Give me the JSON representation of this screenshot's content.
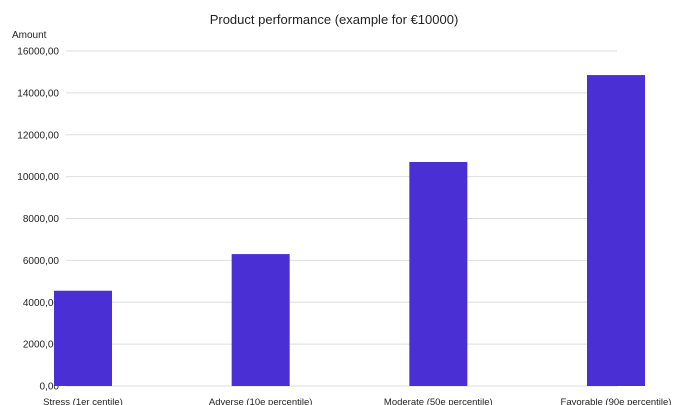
{
  "chart_data": {
    "type": "bar",
    "title": "Product performance (example for €10000)",
    "xlabel": "",
    "ylabel": "Amount",
    "categories": [
      "Stress (1er centile)",
      "Adverse (10e percentile)",
      "Moderate (50e percentile)",
      "Favorable (90e percentile)"
    ],
    "values": [
      4550,
      6300,
      10700,
      14850
    ],
    "ylim": [
      0,
      16000
    ],
    "yticks": [
      "0,00",
      "2000,00",
      "4000,00",
      "6000,00",
      "8000,00",
      "10000,00",
      "12000,00",
      "14000,00",
      "16000,00"
    ],
    "grid": true,
    "legend": "none",
    "bar_color": "#4a2fd4"
  }
}
